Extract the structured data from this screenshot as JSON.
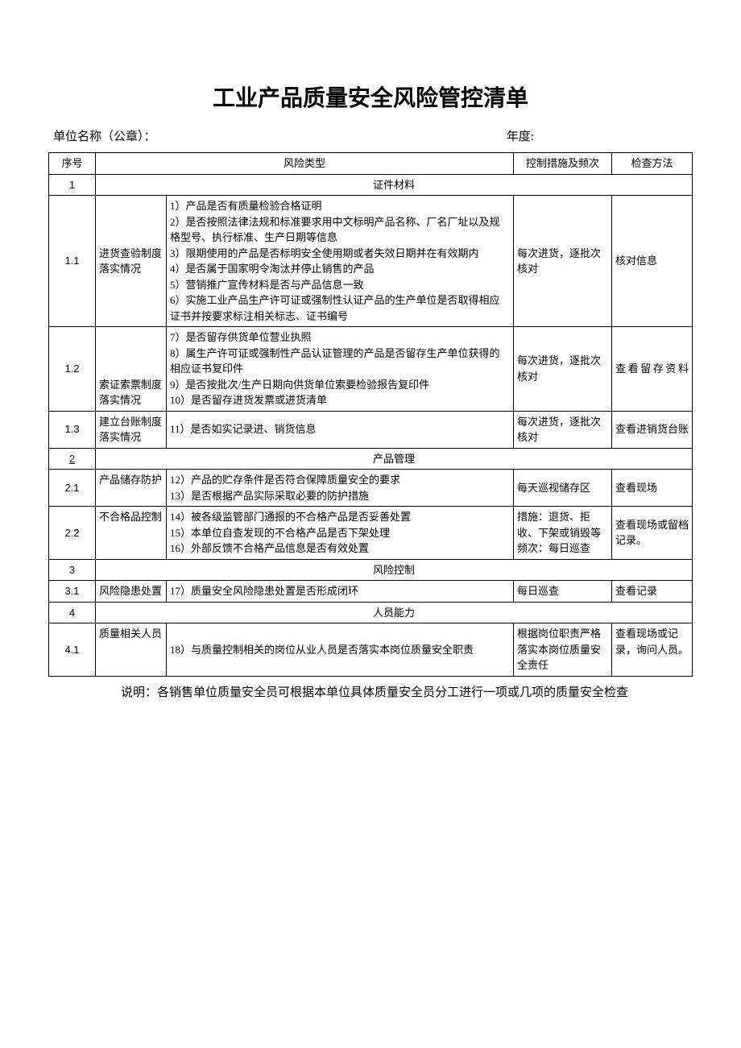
{
  "title": "工业产品质量安全风险管控清单",
  "header": {
    "unit_label": "单位名称（公章）：",
    "year_label": "年度:"
  },
  "columns": {
    "seq": "序号",
    "risk_type": "风险类型",
    "control": "控制措施及频次",
    "check": "检查方法"
  },
  "sections": {
    "s1": {
      "num": "1",
      "title": "证件材料"
    },
    "s2": {
      "num": "2",
      "title": "产品管理"
    },
    "s3": {
      "num": "3",
      "title": "风险控制"
    },
    "s4": {
      "num": "4",
      "title": "人员能力"
    }
  },
  "rows": {
    "r11": {
      "seq": "1.1",
      "cat": "进货查验制度落实情况",
      "risk": "1）产品是否有质量检验合格证明\n2）是否按照法律法规和标准要求用中文标明产品名称、厂名厂址以及规格型号、执行标准、生产日期等信息\n3）限期使用的产品是否标明安全使用期或者失效日期并在有效期内\n4）是否属于国家明令淘汰并停止销售的产品\n5）营销推广宣传材料是否与产品信息一致\n6）实施工业产品生产许可证或强制性认证产品的生产单位是否取得相应证书并按要求标注相关标志、证书编号",
      "ctrl": "每次进货，逐批次核对",
      "chk": "核对信息"
    },
    "r12": {
      "seq": "1.2",
      "cat": "索证索票制度落实情况",
      "risk": "7）是否留存供货单位营业执照\n8）属生产许可证或强制性产品认证管理的产品是否留存生产单位获得的相应证书复印件\n9）是否按批次/生产日期向供货单位索要检验报告复印件\n10）是否留存进货发票或进货清单",
      "ctrl": "每次进货，逐批次核对",
      "chk": "查看留存资料"
    },
    "r13": {
      "seq": "1.3",
      "cat": "建立台账制度落实情况",
      "risk": "11）是否如实记录进、销货信息",
      "ctrl": "每次进货，逐批次核对",
      "chk": "查看进销货台账"
    },
    "r21": {
      "seq": "2.1",
      "cat": "产品储存防护",
      "risk": "12）产品的贮存条件是否符合保障质量安全的要求\n13）是否根据产品实际采取必要的防护措施",
      "ctrl": "每天巡视储存区",
      "chk": "查看现场"
    },
    "r22": {
      "seq": "2.2",
      "cat": "不合格品控制",
      "risk": "14）被各级监管部门通报的不合格产品是否妥善处置\n15）本单位自查发现的不合格产品是否下架处理\n16）外部反馈不合格产品信息是否有效处置",
      "ctrl": "措施：退货、拒收、下架或销毁等\n频次：每日巡查",
      "chk": "查看现场或留档记录。"
    },
    "r31": {
      "seq": "3.1",
      "cat": "风险隐患处置",
      "risk": "17）质量安全风险隐患处置是否形成闭环",
      "ctrl": "每日巡查",
      "chk": "查看记录"
    },
    "r41": {
      "seq": "4.1",
      "cat": "质量相关人员",
      "risk": "18）与质量控制相关的岗位从业人员是否落实本岗位质量安全职责",
      "ctrl": "根据岗位职责严格落实本岗位质量安全责任",
      "chk": "查看现场或记录，询问人员。"
    }
  },
  "footnote": "说明：各销售单位质量安全员可根据本单位具体质量安全员分工进行一项或几项的质量安全检查"
}
